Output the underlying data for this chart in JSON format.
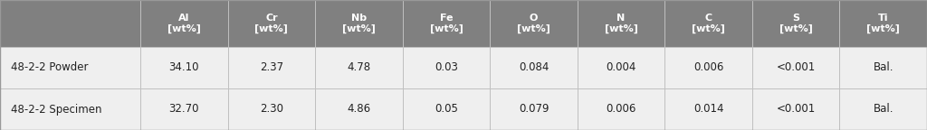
{
  "col_headers": [
    "Al\n[wt%]",
    "Cr\n[wt%]",
    "Nb\n[wt%]",
    "Fe\n[wt%]",
    "O\n[wt%]",
    "N\n[wt%]",
    "C\n[wt%]",
    "S\n[wt%]",
    "Ti\n[wt%]"
  ],
  "row_labels": [
    "48-2-2 Powder",
    "48-2-2 Specimen"
  ],
  "rows": [
    [
      "34.10",
      "2.37",
      "4.78",
      "0.03",
      "0.084",
      "0.004",
      "0.006",
      "<0.001",
      "Bal."
    ],
    [
      "32.70",
      "2.30",
      "4.86",
      "0.05",
      "0.079",
      "0.006",
      "0.014",
      "<0.001",
      "Bal."
    ]
  ],
  "header_bg": "#808080",
  "header_text_color": "#ffffff",
  "row_bg": "#efefef",
  "row_text_color": "#222222",
  "border_color": "#c0c0c0",
  "fig_bg": "#ffffff",
  "outer_border_color": "#999999",
  "header_fontsize": 8.0,
  "data_fontsize": 8.5,
  "label_fontsize": 8.5
}
